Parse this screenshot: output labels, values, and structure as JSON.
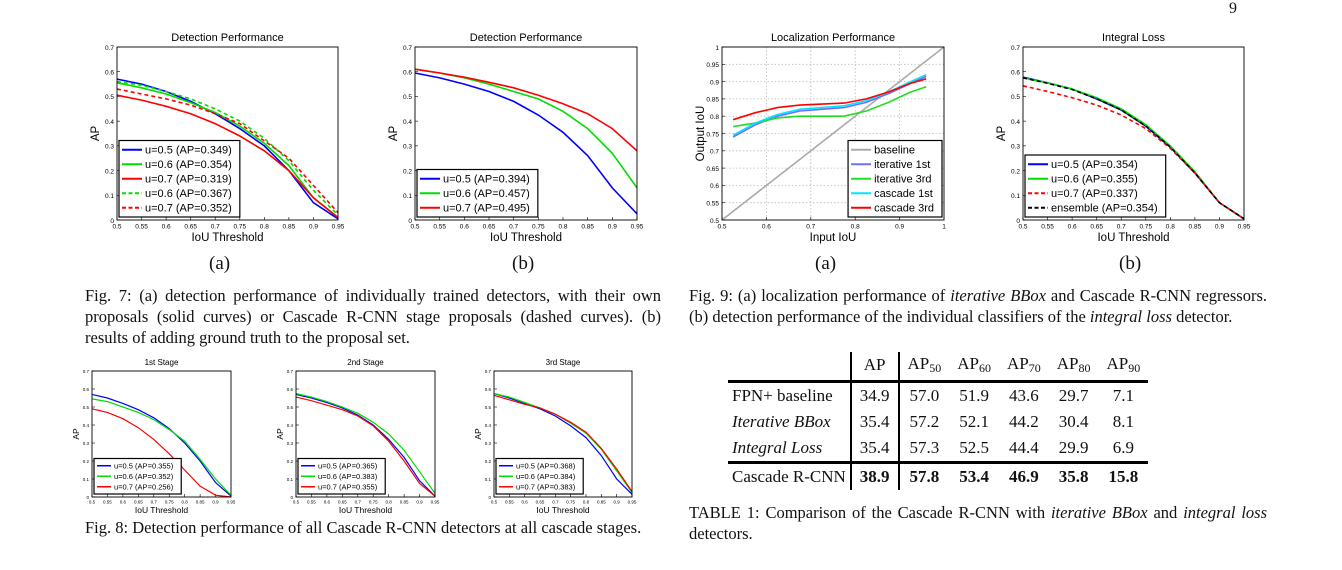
{
  "page_number": "9",
  "fig7": {
    "sub_a": "(a)",
    "sub_b": "(b)",
    "caption": "Fig. 7: (a) detection performance of individually trained detectors, with their own proposals (solid curves) or Cascade R-CNN stage proposals (dashed curves). (b) results of adding ground truth to the proposal set."
  },
  "fig8": {
    "caption": "Fig. 8: Detection performance of all Cascade R-CNN detectors at all cascade stages."
  },
  "fig9": {
    "sub_a": "(a)",
    "sub_b": "(b)",
    "caption_parts": [
      "Fig. 9: (a) localization performance of ",
      "iterative BBox",
      " and Cascade R-CNN regressors. (b) detection performance of the individual classifiers of the ",
      "integral loss",
      " detector."
    ]
  },
  "table1": {
    "headers": [
      "",
      "AP",
      "AP",
      "AP",
      "AP",
      "AP",
      "AP"
    ],
    "header_subscripts": [
      "",
      "",
      "50",
      "60",
      "70",
      "80",
      "90"
    ],
    "rows": [
      {
        "label": "FPN+ baseline",
        "italic": false,
        "values": [
          "34.9",
          "57.0",
          "51.9",
          "43.6",
          "29.7",
          "7.1"
        ]
      },
      {
        "label": "Iterative BBox",
        "italic": true,
        "values": [
          "35.4",
          "57.2",
          "52.1",
          "44.2",
          "30.4",
          "8.1"
        ]
      },
      {
        "label": "Integral Loss",
        "italic": true,
        "values": [
          "35.4",
          "57.3",
          "52.5",
          "44.4",
          "29.9",
          "6.9"
        ]
      },
      {
        "label": "Cascade R-CNN",
        "italic": false,
        "bold_values": true,
        "values": [
          "38.9",
          "57.8",
          "53.4",
          "46.9",
          "35.8",
          "15.8"
        ]
      }
    ],
    "caption_parts": [
      "TABLE 1: Comparison of the Cascade R-CNN with ",
      "iterative BBox",
      " and ",
      "integral loss",
      " detectors."
    ]
  },
  "chart_data": [
    {
      "id": "fig7a",
      "type": "line",
      "title": "Detection Performance",
      "xlabel": "IoU Threshold",
      "ylabel": "AP",
      "xlim": [
        0.5,
        0.95
      ],
      "ylim": [
        0,
        0.7
      ],
      "grid": false,
      "legend": "lower-left",
      "xticks": [
        "0.5",
        "0.55",
        "0.6",
        "0.65",
        "0.7",
        "0.75",
        "0.8",
        "0.85",
        "0.9",
        "0.95"
      ],
      "yticks": [
        "0",
        "0.1",
        "0.2",
        "0.3",
        "0.4",
        "0.5",
        "0.6",
        "0.7"
      ],
      "x": [
        0.5,
        0.55,
        0.6,
        0.65,
        0.7,
        0.75,
        0.8,
        0.85,
        0.9,
        0.95
      ],
      "series": [
        {
          "name": "u=0.5 (AP=0.349)",
          "color": "#0000ff",
          "dashed": false,
          "values": [
            0.57,
            0.55,
            0.52,
            0.48,
            0.43,
            0.37,
            0.3,
            0.2,
            0.07,
            0.005
          ]
        },
        {
          "name": "u=0.6 (AP=0.354)",
          "color": "#00dd00",
          "dashed": false,
          "values": [
            0.555,
            0.535,
            0.51,
            0.475,
            0.435,
            0.38,
            0.31,
            0.22,
            0.09,
            0.01
          ]
        },
        {
          "name": "u=0.7 (AP=0.319)",
          "color": "#ff0000",
          "dashed": false,
          "values": [
            0.505,
            0.485,
            0.46,
            0.43,
            0.39,
            0.34,
            0.28,
            0.2,
            0.09,
            0.01
          ]
        },
        {
          "name": "u=0.6 (AP=0.367)",
          "color": "#00dd00",
          "dashed": true,
          "values": [
            0.56,
            0.545,
            0.52,
            0.49,
            0.45,
            0.4,
            0.33,
            0.24,
            0.12,
            0.02
          ]
        },
        {
          "name": "u=0.7 (AP=0.352)",
          "color": "#ff0000",
          "dashed": true,
          "values": [
            0.53,
            0.51,
            0.49,
            0.465,
            0.43,
            0.39,
            0.32,
            0.25,
            0.14,
            0.03
          ]
        }
      ]
    },
    {
      "id": "fig7b",
      "type": "line",
      "title": "Detection Performance",
      "xlabel": "IoU Threshold",
      "ylabel": "AP",
      "xlim": [
        0.5,
        0.95
      ],
      "ylim": [
        0,
        0.7
      ],
      "grid": false,
      "legend": "lower-left",
      "xticks": [
        "0.5",
        "0.55",
        "0.6",
        "0.65",
        "0.7",
        "0.75",
        "0.8",
        "0.85",
        "0.9",
        "0.95"
      ],
      "yticks": [
        "0",
        "0.1",
        "0.2",
        "0.3",
        "0.4",
        "0.5",
        "0.6",
        "0.7"
      ],
      "x": [
        0.5,
        0.55,
        0.6,
        0.65,
        0.7,
        0.75,
        0.8,
        0.85,
        0.9,
        0.95
      ],
      "series": [
        {
          "name": "u=0.5 (AP=0.394)",
          "color": "#0000ff",
          "dashed": false,
          "values": [
            0.595,
            0.575,
            0.55,
            0.52,
            0.48,
            0.425,
            0.355,
            0.26,
            0.13,
            0.025
          ]
        },
        {
          "name": "u=0.6 (AP=0.457)",
          "color": "#00dd00",
          "dashed": false,
          "values": [
            0.61,
            0.595,
            0.575,
            0.55,
            0.52,
            0.49,
            0.44,
            0.37,
            0.27,
            0.13
          ]
        },
        {
          "name": "u=0.7 (AP=0.495)",
          "color": "#ff0000",
          "dashed": false,
          "values": [
            0.61,
            0.595,
            0.578,
            0.557,
            0.535,
            0.505,
            0.47,
            0.43,
            0.37,
            0.28
          ]
        }
      ]
    },
    {
      "id": "fig9a",
      "type": "line",
      "title": "Localization Performance",
      "xlabel": "Input IoU",
      "ylabel": "Output IoU",
      "xlim": [
        0.5,
        1
      ],
      "ylim": [
        0.5,
        1
      ],
      "grid": true,
      "legend": "lower-right",
      "xticks": [
        "0.5",
        "0.6",
        "0.7",
        "0.8",
        "0.9",
        "1"
      ],
      "yticks": [
        "0.5",
        "0.55",
        "0.6",
        "0.65",
        "0.7",
        "0.75",
        "0.8",
        "0.85",
        "0.9",
        "0.95",
        "1"
      ],
      "x": [
        0.525,
        0.575,
        0.625,
        0.675,
        0.725,
        0.775,
        0.825,
        0.875,
        0.925,
        0.96
      ],
      "series": [
        {
          "name": "baseline",
          "color": "#aaaaaa",
          "dashed": false,
          "x": [
            0.5,
            1
          ],
          "values": [
            0.5,
            1
          ]
        },
        {
          "name": "iterative 1st",
          "color": "#6f6fff",
          "dashed": false,
          "values": [
            0.74,
            0.775,
            0.8,
            0.815,
            0.82,
            0.825,
            0.84,
            0.865,
            0.895,
            0.915
          ]
        },
        {
          "name": "iterative 3rd",
          "color": "#22dd22",
          "dashed": false,
          "values": [
            0.77,
            0.78,
            0.795,
            0.8,
            0.8,
            0.8,
            0.815,
            0.84,
            0.87,
            0.885
          ]
        },
        {
          "name": "cascade 1st",
          "color": "#00e5ff",
          "dashed": false,
          "values": [
            0.745,
            0.78,
            0.805,
            0.82,
            0.825,
            0.83,
            0.845,
            0.87,
            0.9,
            0.92
          ]
        },
        {
          "name": "cascade 3rd",
          "color": "#ff0000",
          "dashed": false,
          "values": [
            0.79,
            0.81,
            0.825,
            0.832,
            0.835,
            0.838,
            0.85,
            0.87,
            0.895,
            0.908
          ]
        }
      ]
    },
    {
      "id": "fig9b",
      "type": "line",
      "title": "Integral Loss",
      "xlabel": "IoU Threshold",
      "ylabel": "AP",
      "xlim": [
        0.5,
        0.95
      ],
      "ylim": [
        0,
        0.7
      ],
      "grid": false,
      "legend": "lower-left",
      "xticks": [
        "0.5",
        "0.55",
        "0.6",
        "0.65",
        "0.7",
        "0.75",
        "0.8",
        "0.85",
        "0.9",
        "0.95"
      ],
      "yticks": [
        "0",
        "0.1",
        "0.2",
        "0.3",
        "0.4",
        "0.5",
        "0.6",
        "0.7"
      ],
      "x": [
        0.5,
        0.55,
        0.6,
        0.65,
        0.7,
        0.75,
        0.8,
        0.85,
        0.9,
        0.95
      ],
      "series": [
        {
          "name": "u=0.5 (AP=0.354)",
          "color": "#0000ff",
          "dashed": false,
          "values": [
            0.578,
            0.555,
            0.53,
            0.49,
            0.445,
            0.38,
            0.295,
            0.19,
            0.07,
            0.005
          ]
        },
        {
          "name": "u=0.6 (AP=0.355)",
          "color": "#00dd00",
          "dashed": false,
          "values": [
            0.575,
            0.555,
            0.53,
            0.495,
            0.45,
            0.385,
            0.3,
            0.195,
            0.07,
            0.005
          ]
        },
        {
          "name": "u=0.7 (AP=0.337)",
          "color": "#ff0000",
          "dashed": true,
          "values": [
            0.543,
            0.52,
            0.495,
            0.465,
            0.425,
            0.37,
            0.29,
            0.19,
            0.07,
            0.005
          ]
        },
        {
          "name": "ensemble (AP=0.354)",
          "color": "#000000",
          "dashed": true,
          "values": [
            0.575,
            0.553,
            0.528,
            0.49,
            0.445,
            0.38,
            0.295,
            0.19,
            0.07,
            0.005
          ]
        }
      ]
    },
    {
      "id": "fig8-1",
      "type": "line",
      "title": "1st Stage",
      "xlabel": "IoU Threshold",
      "ylabel": "AP",
      "xlim": [
        0.5,
        0.95
      ],
      "ylim": [
        0,
        0.7
      ],
      "grid": false,
      "legend": "lower-left",
      "xticks": [
        "0.5",
        "0.55",
        "0.6",
        "0.65",
        "0.7",
        "0.75",
        "0.8",
        "0.85",
        "0.9",
        "0.95"
      ],
      "yticks": [
        "0",
        "0.1",
        "0.2",
        "0.3",
        "0.4",
        "0.5",
        "0.6",
        "0.7"
      ],
      "x": [
        0.5,
        0.55,
        0.6,
        0.65,
        0.7,
        0.75,
        0.8,
        0.85,
        0.9,
        0.95
      ],
      "series": [
        {
          "name": "u=0.5 (AP=0.355)",
          "color": "#0000ff",
          "dashed": false,
          "values": [
            0.57,
            0.55,
            0.52,
            0.485,
            0.44,
            0.38,
            0.3,
            0.2,
            0.08,
            0.005
          ]
        },
        {
          "name": "u=0.6 (AP=0.352)",
          "color": "#00dd00",
          "dashed": false,
          "values": [
            0.545,
            0.53,
            0.5,
            0.47,
            0.43,
            0.375,
            0.31,
            0.21,
            0.1,
            0.01
          ]
        },
        {
          "name": "u=0.7 (AP=0.256)",
          "color": "#ff0000",
          "dashed": false,
          "values": [
            0.49,
            0.47,
            0.435,
            0.385,
            0.32,
            0.24,
            0.15,
            0.06,
            0.01,
            0.0
          ]
        }
      ]
    },
    {
      "id": "fig8-2",
      "type": "line",
      "title": "2nd Stage",
      "xlabel": "IoU Threshold",
      "ylabel": "AP",
      "xlim": [
        0.5,
        0.95
      ],
      "ylim": [
        0,
        0.7
      ],
      "grid": false,
      "legend": "lower-left",
      "xticks": [
        "0.5",
        "0.55",
        "0.6",
        "0.65",
        "0.7",
        "0.75",
        "0.8",
        "0.85",
        "0.9",
        "0.95"
      ],
      "yticks": [
        "0",
        "0.1",
        "0.2",
        "0.3",
        "0.4",
        "0.5",
        "0.6",
        "0.7"
      ],
      "x": [
        0.5,
        0.55,
        0.6,
        0.65,
        0.7,
        0.75,
        0.8,
        0.85,
        0.9,
        0.95
      ],
      "series": [
        {
          "name": "u=0.5 (AP=0.365)",
          "color": "#0000ff",
          "dashed": false,
          "values": [
            0.57,
            0.55,
            0.525,
            0.495,
            0.455,
            0.4,
            0.32,
            0.22,
            0.09,
            0.005
          ]
        },
        {
          "name": "u=0.6 (AP=0.383)",
          "color": "#00dd00",
          "dashed": false,
          "values": [
            0.575,
            0.555,
            0.53,
            0.5,
            0.465,
            0.415,
            0.35,
            0.26,
            0.14,
            0.02
          ]
        },
        {
          "name": "u=0.7 (AP=0.355)",
          "color": "#ff0000",
          "dashed": false,
          "values": [
            0.555,
            0.535,
            0.51,
            0.485,
            0.45,
            0.395,
            0.31,
            0.2,
            0.075,
            0.005
          ]
        }
      ]
    },
    {
      "id": "fig8-3",
      "type": "line",
      "title": "3rd Stage",
      "xlabel": "IoU Threshold",
      "ylabel": "AP",
      "xlim": [
        0.5,
        0.95
      ],
      "ylim": [
        0,
        0.7
      ],
      "grid": false,
      "legend": "lower-left",
      "xticks": [
        "0.5",
        "0.55",
        "0.6",
        "0.65",
        "0.7",
        "0.75",
        "0.8",
        "0.85",
        "0.9",
        "0.95"
      ],
      "yticks": [
        "0",
        "0.1",
        "0.2",
        "0.3",
        "0.4",
        "0.5",
        "0.6",
        "0.7"
      ],
      "x": [
        0.5,
        0.55,
        0.6,
        0.65,
        0.7,
        0.75,
        0.8,
        0.85,
        0.9,
        0.95
      ],
      "series": [
        {
          "name": "u=0.5 (AP=0.368)",
          "color": "#0000ff",
          "dashed": false,
          "values": [
            0.575,
            0.55,
            0.52,
            0.49,
            0.45,
            0.395,
            0.33,
            0.23,
            0.1,
            0.015
          ]
        },
        {
          "name": "u=0.6 (AP=0.384)",
          "color": "#00dd00",
          "dashed": false,
          "values": [
            0.575,
            0.555,
            0.525,
            0.495,
            0.46,
            0.41,
            0.355,
            0.265,
            0.145,
            0.025
          ]
        },
        {
          "name": "u=0.7 (AP=0.383)",
          "color": "#ff0000",
          "dashed": false,
          "values": [
            0.565,
            0.54,
            0.515,
            0.495,
            0.46,
            0.415,
            0.36,
            0.27,
            0.155,
            0.03
          ]
        }
      ]
    }
  ]
}
